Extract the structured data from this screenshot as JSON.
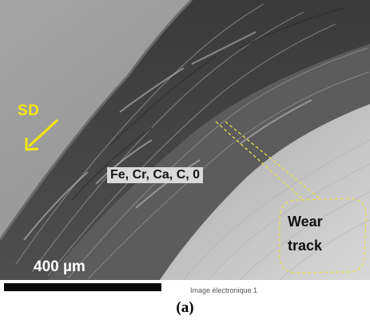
{
  "micrograph": {
    "direction_label": "SD",
    "composition_label": "Fe, Cr, Ca, C, 0",
    "wear_track_label_line1": "Wear",
    "wear_track_label_line2": "track",
    "scale_bar_text": "400 µm",
    "image_caption": "Image électronique 1",
    "annotation_color": "#f5e60e"
  },
  "panel": {
    "label": "(a)"
  }
}
